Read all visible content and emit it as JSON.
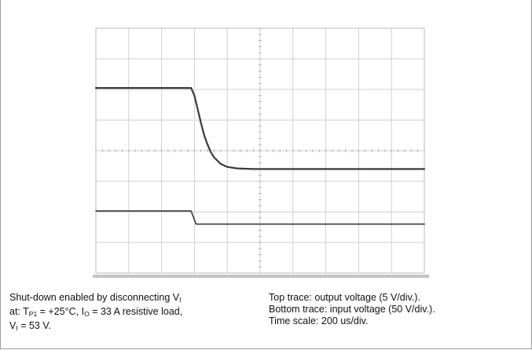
{
  "chart_data": {
    "type": "line",
    "title": "",
    "xlabel": "",
    "ylabel": "",
    "grid": true,
    "grid_divisions": {
      "x": 10,
      "y": 8
    },
    "xlim": [
      0,
      10
    ],
    "ylim": [
      0,
      8
    ],
    "series": [
      {
        "name": "Top trace: output voltage (5 V/div.)",
        "x": [
          0,
          2.9,
          3.0,
          3.1,
          3.2,
          3.3,
          3.4,
          3.5,
          3.6,
          3.8,
          4.0,
          4.3,
          4.8,
          10
        ],
        "values": [
          6.05,
          6.05,
          5.8,
          5.35,
          4.9,
          4.5,
          4.2,
          3.95,
          3.78,
          3.57,
          3.47,
          3.42,
          3.4,
          3.4
        ]
      },
      {
        "name": "Bottom trace: input voltage (50 V/div.)",
        "x": [
          0,
          2.9,
          3.05,
          10
        ],
        "values": [
          2.03,
          2.03,
          1.6,
          1.6
        ]
      }
    ]
  },
  "caption": {
    "left": {
      "line1_prefix": "Shut-down enabled by disconnecting V",
      "line1_sub": "I",
      "line2_a": "at: T",
      "line2_sub1": "P1",
      "line2_b": " = +25°C, I",
      "line2_sub2": "O",
      "line2_c": " = 33 A resistive load,",
      "line3_a": "V",
      "line3_sub": "I",
      "line3_b": " = 53 V."
    },
    "right": {
      "line1": "Top trace: output voltage (5 V/div.).",
      "line2": "Bottom trace: input voltage (50 V/div.).",
      "line3": "Time scale: 200 us/div."
    }
  }
}
